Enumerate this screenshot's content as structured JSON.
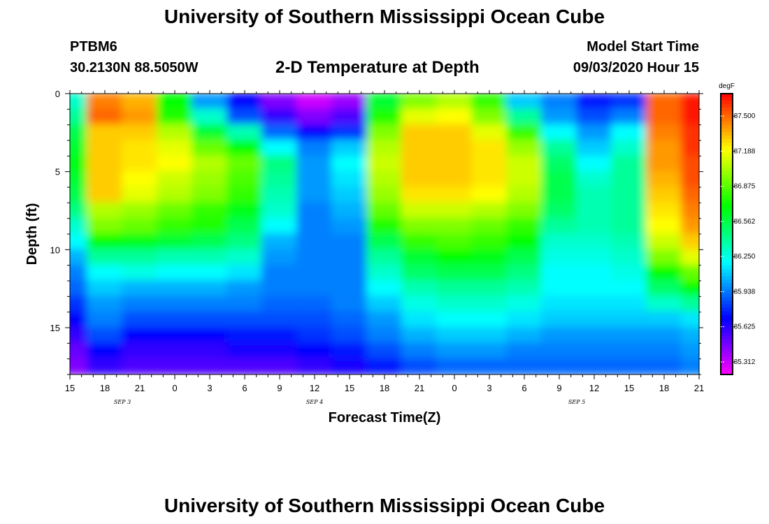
{
  "header": {
    "title": "University of Southern Mississippi Ocean Cube",
    "station": "PTBM6",
    "coords": "30.2130N 88.5050W",
    "plot_title": "2-D Temperature at Depth",
    "start_label": "Model Start Time",
    "start_value": "09/03/2020 Hour 15"
  },
  "footer": {
    "title": "University of Southern Mississippi Ocean Cube"
  },
  "chart_data": {
    "type": "heatmap",
    "title": "2-D Temperature at Depth",
    "xlabel": "Forecast Time(Z)",
    "ylabel": "Depth (ft)",
    "x_tick_labels": [
      "15",
      "18",
      "21",
      "0",
      "3",
      "6",
      "9",
      "12",
      "15",
      "18",
      "21",
      "0",
      "3",
      "6",
      "9",
      "12",
      "15",
      "18",
      "21"
    ],
    "x_date_labels": [
      {
        "tick_index": 1.5,
        "label": "SEP 3"
      },
      {
        "tick_index": 7,
        "label": "SEP 4"
      },
      {
        "tick_index": 14.5,
        "label": "SEP 5"
      }
    ],
    "x_range_hours": [
      0,
      54
    ],
    "y_ticks": [
      0,
      5,
      10,
      15
    ],
    "ylim": [
      18,
      0
    ],
    "colorbar": {
      "unit": "degF",
      "labels": [
        "87.500",
        "87.188",
        "86.875",
        "86.562",
        "86.250",
        "85.938",
        "85.625",
        "85.312"
      ],
      "range": [
        85.2,
        87.7
      ]
    },
    "grid": false,
    "depth_rows_ft": [
      0.5,
      1.5,
      2.5,
      3.5,
      4.5,
      5.5,
      6.5,
      7.5,
      8.5,
      9.5,
      10.5,
      11.5,
      12.5,
      13.5,
      14.5,
      15.5,
      16.5,
      17.5
    ],
    "time_cols_hours": [
      0,
      3,
      6,
      9,
      12,
      15,
      18,
      21,
      24,
      27,
      30,
      33,
      36,
      39,
      42,
      45,
      48,
      51,
      54
    ],
    "values_degF": [
      [
        86.3,
        87.45,
        87.35,
        86.7,
        86.0,
        85.7,
        85.45,
        85.3,
        85.4,
        86.6,
        86.95,
        87.05,
        86.8,
        86.1,
        85.95,
        85.75,
        85.8,
        87.5,
        87.65
      ],
      [
        86.4,
        87.5,
        87.4,
        86.75,
        86.3,
        85.85,
        85.6,
        85.45,
        85.55,
        86.75,
        87.15,
        87.2,
        86.95,
        86.4,
        86.0,
        85.85,
        85.95,
        87.5,
        87.65
      ],
      [
        86.55,
        87.3,
        87.3,
        87.05,
        86.6,
        86.35,
        85.9,
        85.7,
        85.8,
        86.95,
        87.3,
        87.3,
        87.15,
        86.8,
        86.2,
        86.0,
        86.2,
        87.45,
        87.6
      ],
      [
        86.6,
        87.3,
        87.25,
        87.15,
        86.9,
        86.7,
        86.2,
        85.95,
        86.1,
        87.05,
        87.3,
        87.3,
        87.25,
        87.0,
        86.4,
        86.1,
        86.3,
        87.4,
        87.6
      ],
      [
        86.65,
        87.3,
        87.25,
        87.2,
        87.05,
        86.9,
        86.45,
        86.0,
        86.2,
        87.1,
        87.3,
        87.3,
        87.25,
        87.1,
        86.5,
        86.2,
        86.4,
        87.4,
        87.55
      ],
      [
        86.6,
        87.3,
        87.2,
        87.1,
        87.0,
        86.85,
        86.4,
        86.0,
        86.15,
        87.05,
        87.3,
        87.3,
        87.25,
        87.1,
        86.55,
        86.3,
        86.4,
        87.35,
        87.55
      ],
      [
        86.55,
        87.3,
        87.15,
        87.05,
        86.95,
        86.8,
        86.35,
        86.0,
        86.1,
        87.0,
        87.25,
        87.25,
        87.2,
        87.05,
        86.55,
        86.35,
        86.4,
        87.3,
        87.5
      ],
      [
        86.45,
        87.05,
        87.0,
        86.9,
        86.8,
        86.65,
        86.3,
        85.95,
        86.05,
        86.9,
        87.1,
        87.1,
        87.05,
        86.95,
        86.5,
        86.35,
        86.4,
        87.25,
        87.45
      ],
      [
        86.3,
        86.95,
        86.9,
        86.8,
        86.75,
        86.55,
        86.2,
        85.95,
        86.0,
        86.75,
        86.95,
        86.95,
        86.9,
        86.8,
        86.4,
        86.35,
        86.4,
        87.2,
        87.4
      ],
      [
        86.2,
        86.7,
        86.65,
        86.6,
        86.55,
        86.45,
        86.05,
        85.95,
        85.95,
        86.55,
        86.8,
        86.85,
        86.8,
        86.7,
        86.3,
        86.3,
        86.35,
        87.1,
        87.3
      ],
      [
        86.05,
        86.4,
        86.4,
        86.35,
        86.35,
        86.3,
        86.0,
        85.95,
        85.95,
        86.4,
        86.6,
        86.7,
        86.65,
        86.55,
        86.25,
        86.25,
        86.3,
        86.95,
        87.15
      ],
      [
        85.95,
        86.2,
        86.25,
        86.2,
        86.2,
        86.15,
        85.95,
        85.95,
        85.95,
        86.3,
        86.5,
        86.55,
        86.55,
        86.45,
        86.2,
        86.2,
        86.25,
        86.7,
        86.9
      ],
      [
        85.9,
        86.1,
        86.05,
        86.05,
        86.05,
        86.0,
        85.95,
        85.95,
        85.95,
        86.2,
        86.35,
        86.4,
        86.4,
        86.35,
        86.2,
        86.2,
        86.2,
        86.5,
        86.7
      ],
      [
        85.8,
        86.0,
        85.95,
        85.95,
        85.95,
        85.95,
        85.9,
        85.9,
        85.95,
        86.1,
        86.25,
        86.3,
        86.3,
        86.25,
        86.15,
        86.15,
        86.15,
        86.3,
        86.4
      ],
      [
        85.7,
        85.95,
        85.85,
        85.85,
        85.85,
        85.85,
        85.85,
        85.85,
        85.9,
        86.0,
        86.15,
        86.2,
        86.2,
        86.15,
        86.1,
        86.1,
        86.1,
        86.1,
        86.15
      ],
      [
        85.6,
        85.85,
        85.7,
        85.7,
        85.7,
        85.75,
        85.75,
        85.8,
        85.85,
        85.95,
        86.05,
        86.1,
        86.1,
        86.05,
        86.0,
        86.0,
        86.0,
        86.0,
        86.05
      ],
      [
        85.5,
        85.7,
        85.6,
        85.6,
        85.6,
        85.65,
        85.65,
        85.7,
        85.75,
        85.85,
        85.95,
        86.0,
        86.0,
        85.95,
        85.95,
        85.95,
        85.95,
        85.95,
        86.0
      ],
      [
        85.45,
        85.6,
        85.55,
        85.55,
        85.55,
        85.55,
        85.55,
        85.6,
        85.65,
        85.75,
        85.85,
        85.9,
        85.9,
        85.9,
        85.9,
        85.9,
        85.9,
        85.9,
        85.95
      ]
    ]
  }
}
